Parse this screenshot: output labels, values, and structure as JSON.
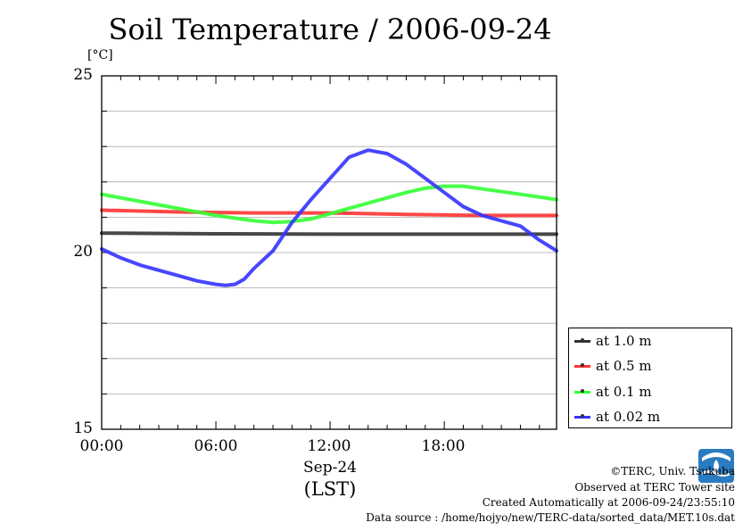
{
  "chart_data": {
    "type": "line",
    "title": "Soil Temperature / 2006-09-24",
    "yunit": "[°C]",
    "ylim": [
      15,
      25
    ],
    "yticks": [
      "25",
      "20",
      "15"
    ],
    "ytick_values": [
      25,
      20,
      15
    ],
    "xlim": [
      0,
      23.9
    ],
    "xticks": [
      "00:00",
      "06:00",
      "12:00",
      "18:00"
    ],
    "xtick_values": [
      0,
      6,
      12,
      18
    ],
    "xdate": "Sep-24",
    "xlabel": "(LST)",
    "grid": true,
    "legend_position": "right-bottom",
    "series": [
      {
        "name": "at 1.0 m",
        "color": "#333333",
        "x": [
          0,
          6,
          12,
          18,
          23.9
        ],
        "y": [
          20.55,
          20.53,
          20.52,
          20.52,
          20.52
        ]
      },
      {
        "name": "at 0.5 m",
        "color": "#ff3333",
        "x": [
          0,
          4,
          8,
          12,
          16,
          20,
          23.9
        ],
        "y": [
          21.2,
          21.15,
          21.12,
          21.12,
          21.08,
          21.05,
          21.05
        ]
      },
      {
        "name": "at 0.1 m",
        "color": "#33ff33",
        "x": [
          0,
          2,
          4,
          6,
          8,
          9,
          10,
          11,
          12,
          14,
          16,
          17,
          18,
          19,
          20,
          22,
          23.9
        ],
        "y": [
          21.65,
          21.45,
          21.25,
          21.05,
          20.9,
          20.85,
          20.88,
          20.95,
          21.1,
          21.4,
          21.7,
          21.82,
          21.88,
          21.88,
          21.8,
          21.65,
          21.5
        ]
      },
      {
        "name": "at 0.02 m",
        "color": "#3333ff",
        "x": [
          0,
          1,
          2,
          3,
          4,
          5,
          6,
          6.5,
          7,
          7.5,
          8,
          9,
          10,
          11,
          12,
          13,
          14,
          15,
          16,
          17,
          18,
          19,
          20,
          21,
          22,
          23,
          23.9
        ],
        "y": [
          20.1,
          19.85,
          19.65,
          19.5,
          19.35,
          19.2,
          19.1,
          19.07,
          19.1,
          19.25,
          19.55,
          20.05,
          20.85,
          21.5,
          22.1,
          22.7,
          22.9,
          22.8,
          22.5,
          22.1,
          21.7,
          21.3,
          21.05,
          20.9,
          20.75,
          20.35,
          20.05
        ]
      }
    ]
  },
  "footer": {
    "copyright": "©TERC, Univ. Tsukuba",
    "observed": "Observed at TERC Tower site",
    "created": "Created Automatically at 2006-09-24/23:55:10",
    "source": "Data source : /home/hojyo/new/TERC-data/sorted_data/MET.10s.dat"
  },
  "logo": {
    "text": "TERC",
    "color": "#2a7bc0"
  }
}
